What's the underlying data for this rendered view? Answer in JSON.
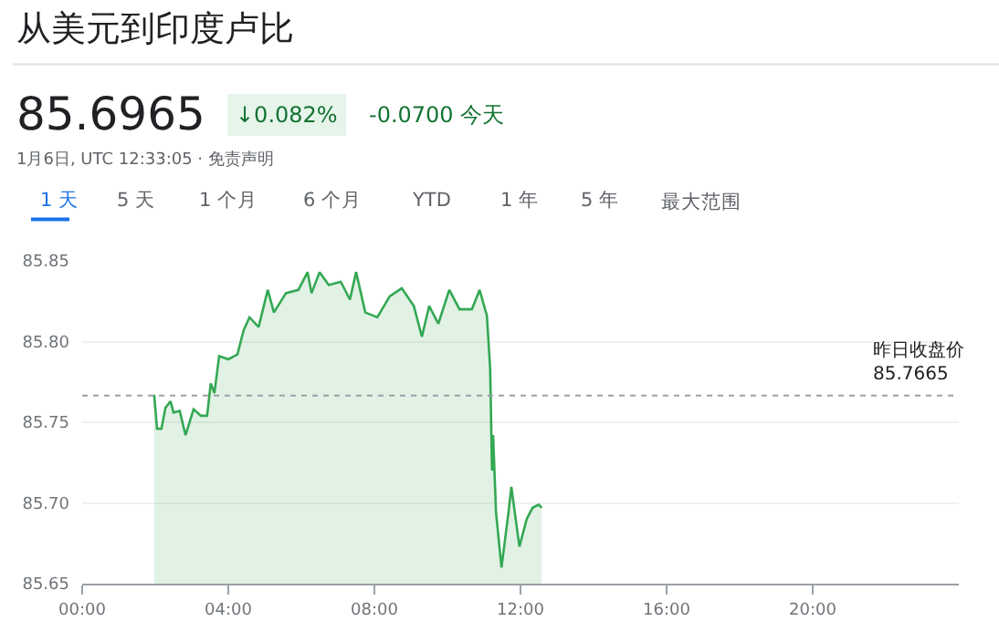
{
  "chart_data": {
    "type": "area",
    "title": "从美元到印度卢比",
    "subtitle": "85.6965",
    "annotations": [
      "↓0.082%",
      "-0.0700 今天",
      "1月6日, UTC 12:33:05 · 免责声明",
      "1 天",
      "5 天",
      "1 个月",
      "6 个月",
      "YTD",
      "1 年",
      "5 年",
      "最大范围"
    ],
    "x": [
      1.97,
      2.05,
      2.17,
      2.28,
      2.42,
      2.5,
      2.67,
      2.83,
      3.05,
      3.25,
      3.42,
      3.52,
      3.62,
      3.75,
      4.0,
      4.25,
      4.42,
      4.58,
      4.83,
      5.08,
      5.25,
      5.58,
      5.92,
      6.17,
      6.28,
      6.5,
      6.75,
      7.08,
      7.33,
      7.5,
      7.75,
      8.08,
      8.42,
      8.75,
      9.08,
      9.3,
      9.5,
      9.75,
      10.05,
      10.33,
      10.67,
      10.88,
      11.08,
      11.17,
      11.22,
      11.25,
      11.33,
      11.48,
      11.67,
      11.75,
      11.97,
      12.17,
      12.33,
      12.5,
      12.58
    ],
    "series": [
      {
        "color": "#34a853",
        "values": [
          85.767,
          85.746,
          85.746,
          85.759,
          85.763,
          85.756,
          85.757,
          85.742,
          85.758,
          85.754,
          85.754,
          85.774,
          85.768,
          85.791,
          85.789,
          85.792,
          85.807,
          85.815,
          85.809,
          85.832,
          85.818,
          85.83,
          85.832,
          85.843,
          85.83,
          85.843,
          85.835,
          85.837,
          85.826,
          85.843,
          85.818,
          85.815,
          85.828,
          85.833,
          85.822,
          85.803,
          85.822,
          85.811,
          85.832,
          85.82,
          85.82,
          85.832,
          85.816,
          85.783,
          85.72,
          85.742,
          85.694,
          85.66,
          85.694,
          85.71,
          85.673,
          85.69,
          85.697,
          85.699,
          85.697
        ]
      }
    ],
    "xlim": [
      0,
      24
    ],
    "xticks": [
      {
        "value": 0,
        "label": "00:00"
      },
      {
        "value": 4,
        "label": "04:00"
      },
      {
        "value": 8,
        "label": "08:00"
      },
      {
        "value": 12,
        "label": "12:00"
      },
      {
        "value": 16,
        "label": "16:00"
      },
      {
        "value": 20,
        "label": "20:00"
      }
    ],
    "ylim": [
      85.65,
      85.85
    ],
    "yticks": [
      85.65,
      {
        "value": 85.7,
        "label": "85.70"
      },
      85.75,
      {
        "value": 85.8,
        "label": "85.80"
      },
      85.85
    ],
    "ref_lines": [
      {
        "axis": "y",
        "value": 85.7665,
        "label": "昨日收盘价 85.7665",
        "line_style": "dotted",
        "color": "#9aa0a6"
      }
    ],
    "grid": "y",
    "marker": "none",
    "line_style": "solid"
  }
}
